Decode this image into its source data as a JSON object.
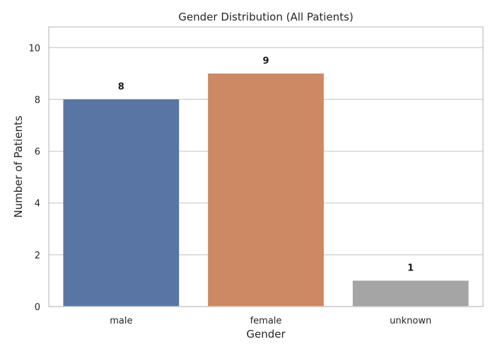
{
  "chart_data": {
    "type": "bar",
    "title": "Gender Distribution (All Patients)",
    "xlabel": "Gender",
    "ylabel": "Number of Patients",
    "categories": [
      "male",
      "female",
      "unknown"
    ],
    "values": [
      8,
      9,
      1
    ],
    "data_labels": [
      "8",
      "9",
      "1"
    ],
    "colors": [
      "#5975a4",
      "#cc8963",
      "#a5a5a5"
    ],
    "ylim": [
      0,
      10.8
    ],
    "yticks": [
      0,
      2,
      4,
      6,
      8,
      10
    ],
    "grid": true,
    "legend": "none"
  }
}
